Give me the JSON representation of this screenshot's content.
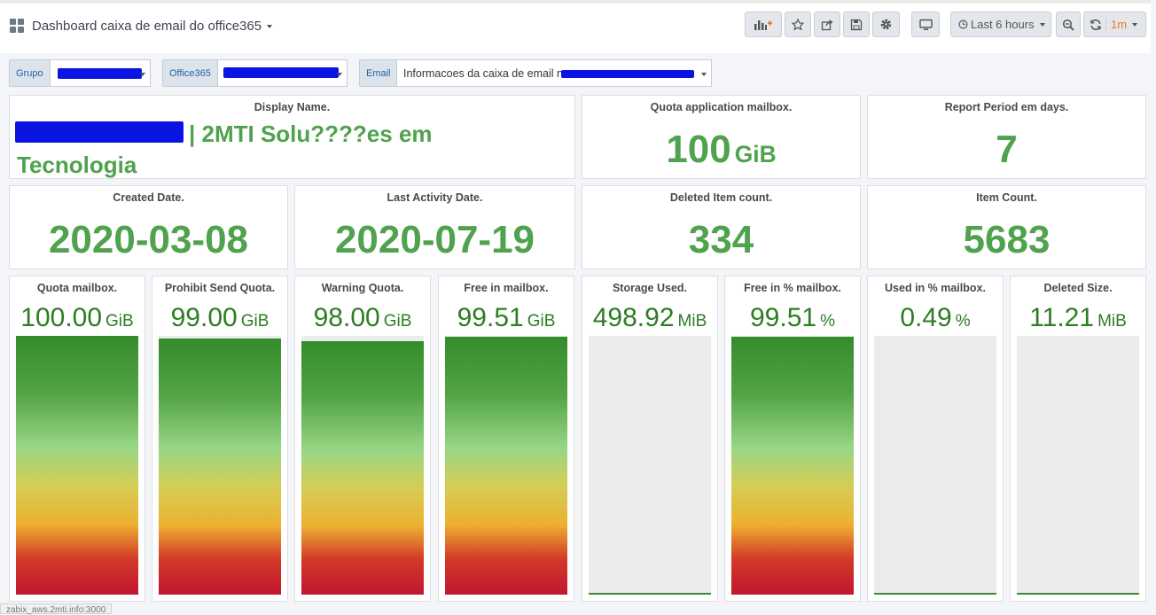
{
  "dashboard": {
    "title": "Dashboard caixa de email do office365"
  },
  "toolbar": {
    "time_range": "Last 6 hours",
    "refresh_interval": "1m"
  },
  "variables": [
    {
      "label": "Grupo",
      "value": ""
    },
    {
      "label": "Office365",
      "value": ""
    },
    {
      "label": "Email",
      "value": "Informacoes da caixa de email n"
    }
  ],
  "stats": {
    "display_name": {
      "title": "Display Name.",
      "value": "| 2MTI Solu????es em Tecnologia"
    },
    "quota_app": {
      "title": "Quota application mailbox.",
      "value": "100",
      "unit": "GiB"
    },
    "report_period": {
      "title": "Report Period em days.",
      "value": "7"
    },
    "created": {
      "title": "Created Date.",
      "value": "2020-03-08"
    },
    "last_activity": {
      "title": "Last Activity Date.",
      "value": "2020-07-19"
    },
    "deleted_count": {
      "title": "Deleted Item count.",
      "value": "334"
    },
    "item_count": {
      "title": "Item Count.",
      "value": "5683"
    }
  },
  "gauges": [
    {
      "title": "Quota mailbox.",
      "value": "100.00",
      "unit": "GiB",
      "fill": 1.0
    },
    {
      "title": "Prohibit Send Quota.",
      "value": "99.00",
      "unit": "GiB",
      "fill": 0.99
    },
    {
      "title": "Warning Quota.",
      "value": "98.00",
      "unit": "GiB",
      "fill": 0.98
    },
    {
      "title": "Free in mailbox.",
      "value": "99.51",
      "unit": "GiB",
      "fill": 0.9951
    },
    {
      "title": "Storage Used.",
      "value": "498.92",
      "unit": "MiB",
      "fill": 0.0049
    },
    {
      "title": "Free in % mailbox.",
      "value": "99.51",
      "unit": "%",
      "fill": 0.9951
    },
    {
      "title": "Used in % mailbox.",
      "value": "0.49",
      "unit": "%",
      "fill": 0.0049
    },
    {
      "title": "Deleted Size.",
      "value": "11.21",
      "unit": "MiB",
      "fill": 0.0001
    }
  ],
  "statusbar": {
    "text": "zabix_aws.2mti.info:3000"
  }
}
